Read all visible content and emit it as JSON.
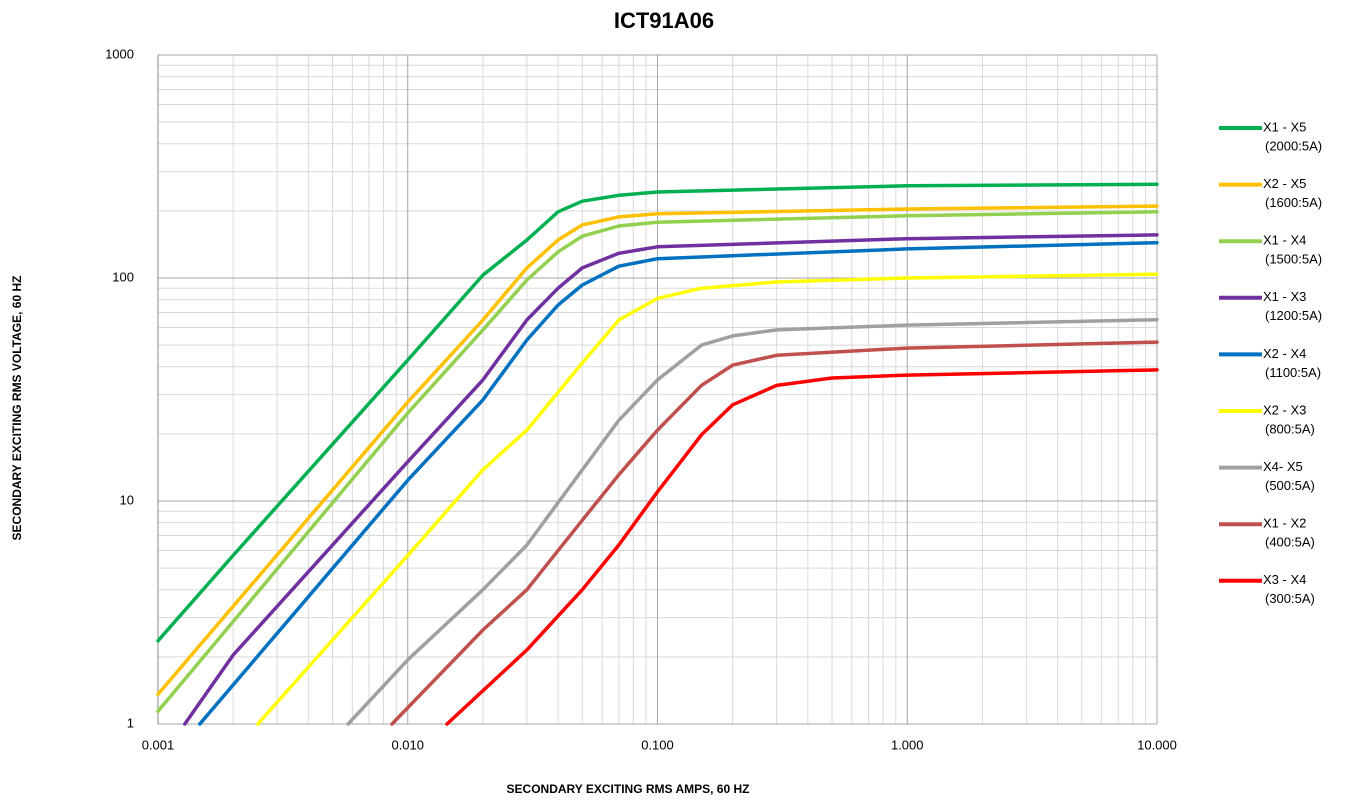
{
  "chart_data": {
    "type": "line",
    "title": "ICT91A06",
    "xlabel": "SECONDARY EXCITING RMS AMPS, 60 HZ",
    "ylabel": "SECONDARY EXCITING RMS VOLTAGE, 60 HZ",
    "xscale": "log",
    "yscale": "log",
    "grid": true,
    "minor_grid": true,
    "legend": "right",
    "xlim": [
      0.001,
      10
    ],
    "ylim": [
      1,
      1000
    ],
    "xticks": [
      0.001,
      {
        "value": 0.01,
        "label": "0.010"
      },
      {
        "value": 0.1,
        "label": "0.100"
      },
      {
        "value": 1,
        "label": "1.000"
      },
      {
        "value": 10,
        "label": "10.000"
      }
    ],
    "yticks": [
      1,
      10,
      100,
      1000
    ],
    "series": [
      {
        "name": "X1 - X5",
        "ratio": "(2000:5A)",
        "color": "#00b050",
        "x": [
          0.001,
          0.002,
          0.01,
          0.02,
          0.03,
          0.04,
          0.05,
          0.07,
          0.1,
          1,
          10
        ],
        "values": [
          2.36,
          5.7,
          42.9,
          103,
          148,
          198,
          221,
          235,
          243,
          259,
          263
        ]
      },
      {
        "name": "X2 - X5",
        "ratio": "(1600:5A)",
        "color": "#ffc000",
        "x": [
          0.001,
          0.01,
          0.02,
          0.03,
          0.04,
          0.05,
          0.07,
          0.1,
          1,
          10
        ],
        "values": [
          1.36,
          27.8,
          64.8,
          111,
          148,
          173,
          188,
          194,
          204,
          210
        ]
      },
      {
        "name": "X1 - X4",
        "ratio": "(1500:5A)",
        "color": "#92d050",
        "x": [
          0.001,
          0.01,
          0.02,
          0.03,
          0.04,
          0.05,
          0.07,
          0.1,
          1,
          10
        ],
        "values": [
          1.14,
          24.8,
          58.5,
          98,
          131,
          154,
          171,
          178,
          190,
          198
        ]
      },
      {
        "name": "X1 - X3",
        "ratio": "(1200:5A)",
        "color": "#7030a0",
        "x": [
          0.00128,
          0.002,
          0.01,
          0.02,
          0.03,
          0.04,
          0.05,
          0.07,
          0.1,
          1,
          10
        ],
        "values": [
          1,
          2.04,
          15,
          34.9,
          64.9,
          90,
          111,
          129,
          138,
          150,
          156
        ]
      },
      {
        "name": "X2 - X4",
        "ratio": "(1100:5A)",
        "color": "#0070c0",
        "x": [
          0.00147,
          0.01,
          0.02,
          0.03,
          0.04,
          0.05,
          0.07,
          0.1,
          1,
          10
        ],
        "values": [
          1,
          12.4,
          28.4,
          52.7,
          75.7,
          93,
          113,
          122,
          135,
          144
        ]
      },
      {
        "name": "X2 - X3",
        "ratio": "(800:5A)",
        "color": "#ffff00",
        "x": [
          0.00251,
          0.01,
          0.02,
          0.03,
          0.05,
          0.07,
          0.1,
          0.15,
          0.3,
          1,
          10
        ],
        "values": [
          1,
          5.7,
          13.8,
          20.8,
          41.6,
          64.8,
          81,
          90,
          96,
          100,
          104
        ]
      },
      {
        "name": "X4- X5",
        "ratio": "(500:5A)",
        "color": "#a0a0a0",
        "x": [
          0.00577,
          0.01,
          0.02,
          0.03,
          0.05,
          0.07,
          0.1,
          0.15,
          0.2,
          0.3,
          1,
          10
        ],
        "values": [
          1,
          1.94,
          4,
          6.35,
          13.8,
          23,
          34.9,
          50,
          55,
          58.5,
          61.5,
          65
        ]
      },
      {
        "name": "X1 - X2",
        "ratio": "(400:5A)",
        "color": "#c0504d",
        "x": [
          0.00865,
          0.02,
          0.03,
          0.05,
          0.07,
          0.1,
          0.15,
          0.2,
          0.3,
          1,
          10
        ],
        "values": [
          1,
          2.64,
          4,
          8.2,
          13.1,
          20.8,
          33,
          40.7,
          45,
          48.5,
          51.6
        ]
      },
      {
        "name": "X3 - X4",
        "ratio": "(300:5A)",
        "color": "#ff0000",
        "x": [
          0.01436,
          0.03,
          0.05,
          0.07,
          0.1,
          0.15,
          0.2,
          0.3,
          0.5,
          1,
          10
        ],
        "values": [
          1,
          2.15,
          4,
          6.35,
          11,
          19.8,
          27,
          33,
          35.6,
          36.7,
          38.7
        ]
      }
    ]
  }
}
